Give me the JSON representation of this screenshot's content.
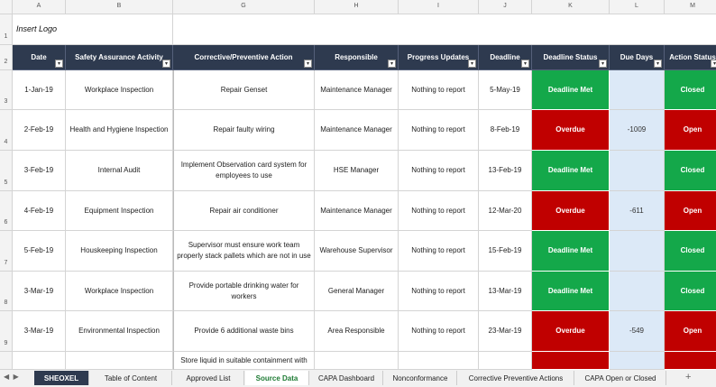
{
  "column_headers": [
    "A",
    "B",
    "G",
    "H",
    "I",
    "J",
    "K",
    "L",
    "M"
  ],
  "row_numbers": [
    "1",
    "2",
    "3",
    "4",
    "5",
    "6",
    "7",
    "8",
    "9"
  ],
  "logo_text": "Insert Logo",
  "table": {
    "headers": [
      "Date",
      "Safety Assurance Activity",
      "Corrective/Preventive Action",
      "Responsible",
      "Progress Updates",
      "Deadline",
      "Deadline Status",
      "Due Days",
      "Action Status"
    ],
    "rows": [
      {
        "date": "1-Jan-19",
        "activity": "Workplace Inspection",
        "action": "Repair Genset",
        "responsible": "Maintenance Manager",
        "progress": "Nothing to report",
        "deadline": "5-May-19",
        "status": "Deadline Met",
        "status_color": "#14a84a",
        "action_status": "Closed"
      },
      {
        "date": "2-Feb-19",
        "activity": "Health and Hygiene Inspection",
        "action": "Repair faulty wiring",
        "responsible": "Maintenance Manager",
        "progress": "Nothing to report",
        "deadline": "8-Feb-19",
        "status": "Overdue",
        "status_color": "#c00000",
        "due_days": -1009,
        "action_status": "Open"
      },
      {
        "date": "3-Feb-19",
        "activity": "Internal Audit",
        "action": "Implement Observation card system for employees to use",
        "responsible": "HSE Manager",
        "progress": "Nothing to report",
        "deadline": "13-Feb-19",
        "status": "Deadline Met",
        "status_color": "#14a84a",
        "action_status": "Closed"
      },
      {
        "date": "4-Feb-19",
        "activity": "Equipment Inspection",
        "action": "Repair air conditioner",
        "responsible": "Maintenance Manager",
        "progress": "Nothing to report",
        "deadline": "12-Mar-20",
        "status": "Overdue",
        "status_color": "#c00000",
        "due_days": -611,
        "action_status": "Open"
      },
      {
        "date": "5-Feb-19",
        "activity": "Houskeeping Inspection",
        "action": "Supervisor must ensure work team properly stack pallets which are not in use",
        "responsible": "Warehouse Supervisor",
        "progress": "Nothing to report",
        "deadline": "15-Feb-19",
        "status": "Deadline Met",
        "status_color": "#14a84a",
        "action_status": "Closed"
      },
      {
        "date": "3-Mar-19",
        "activity": "Workplace Inspection",
        "action": "Provide portable drinking water for workers",
        "responsible": "General Manager",
        "progress": "Nothing to report",
        "deadline": "13-Mar-19",
        "status": "Deadline Met",
        "status_color": "#14a84a",
        "action_status": "Closed"
      },
      {
        "date": "3-Mar-19",
        "activity": "Environmental Inspection",
        "action": "Provide 6 additional waste bins",
        "responsible": "Area Responsible",
        "progress": "Nothing to report",
        "deadline": "23-Mar-19",
        "status": "Overdue",
        "status_color": "#c00000",
        "due_days": -549,
        "action_status": "Open"
      },
      {
        "action": "Store liquid in suitable containment with",
        "status_color": "#c00000"
      }
    ]
  },
  "sheet_tabs": [
    "SHEOXEL",
    "Table of Content",
    "Approved List",
    "Source Data",
    "CAPA Dashboard",
    "Nonconformance",
    "Corrective Preventive Actions",
    "CAPA Open or Closed"
  ],
  "active_tab": 3
}
